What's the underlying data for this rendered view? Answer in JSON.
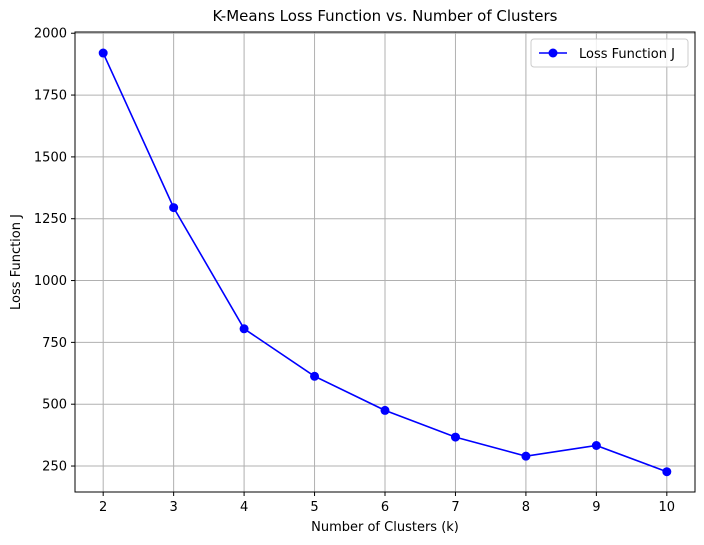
{
  "chart_data": {
    "type": "line",
    "title": "K-Means Loss Function vs. Number of Clusters",
    "xlabel": "Number of Clusters (k)",
    "ylabel": "Loss Function J",
    "x": [
      2,
      3,
      4,
      5,
      6,
      7,
      8,
      9,
      10
    ],
    "xticks": [
      2,
      3,
      4,
      5,
      6,
      7,
      8,
      9,
      10
    ],
    "yticks": [
      250,
      500,
      750,
      1000,
      1250,
      1500,
      1750,
      2000
    ],
    "ylim": [
      145,
      2005
    ],
    "xlim": [
      1.6,
      10.4
    ],
    "grid": true,
    "legend_position": "top-right",
    "series": [
      {
        "name": "Loss Function J",
        "color": "#0000ff",
        "marker": "circle",
        "values": [
          1920,
          1295,
          805,
          613,
          475,
          367,
          290,
          333,
          227
        ]
      }
    ]
  }
}
